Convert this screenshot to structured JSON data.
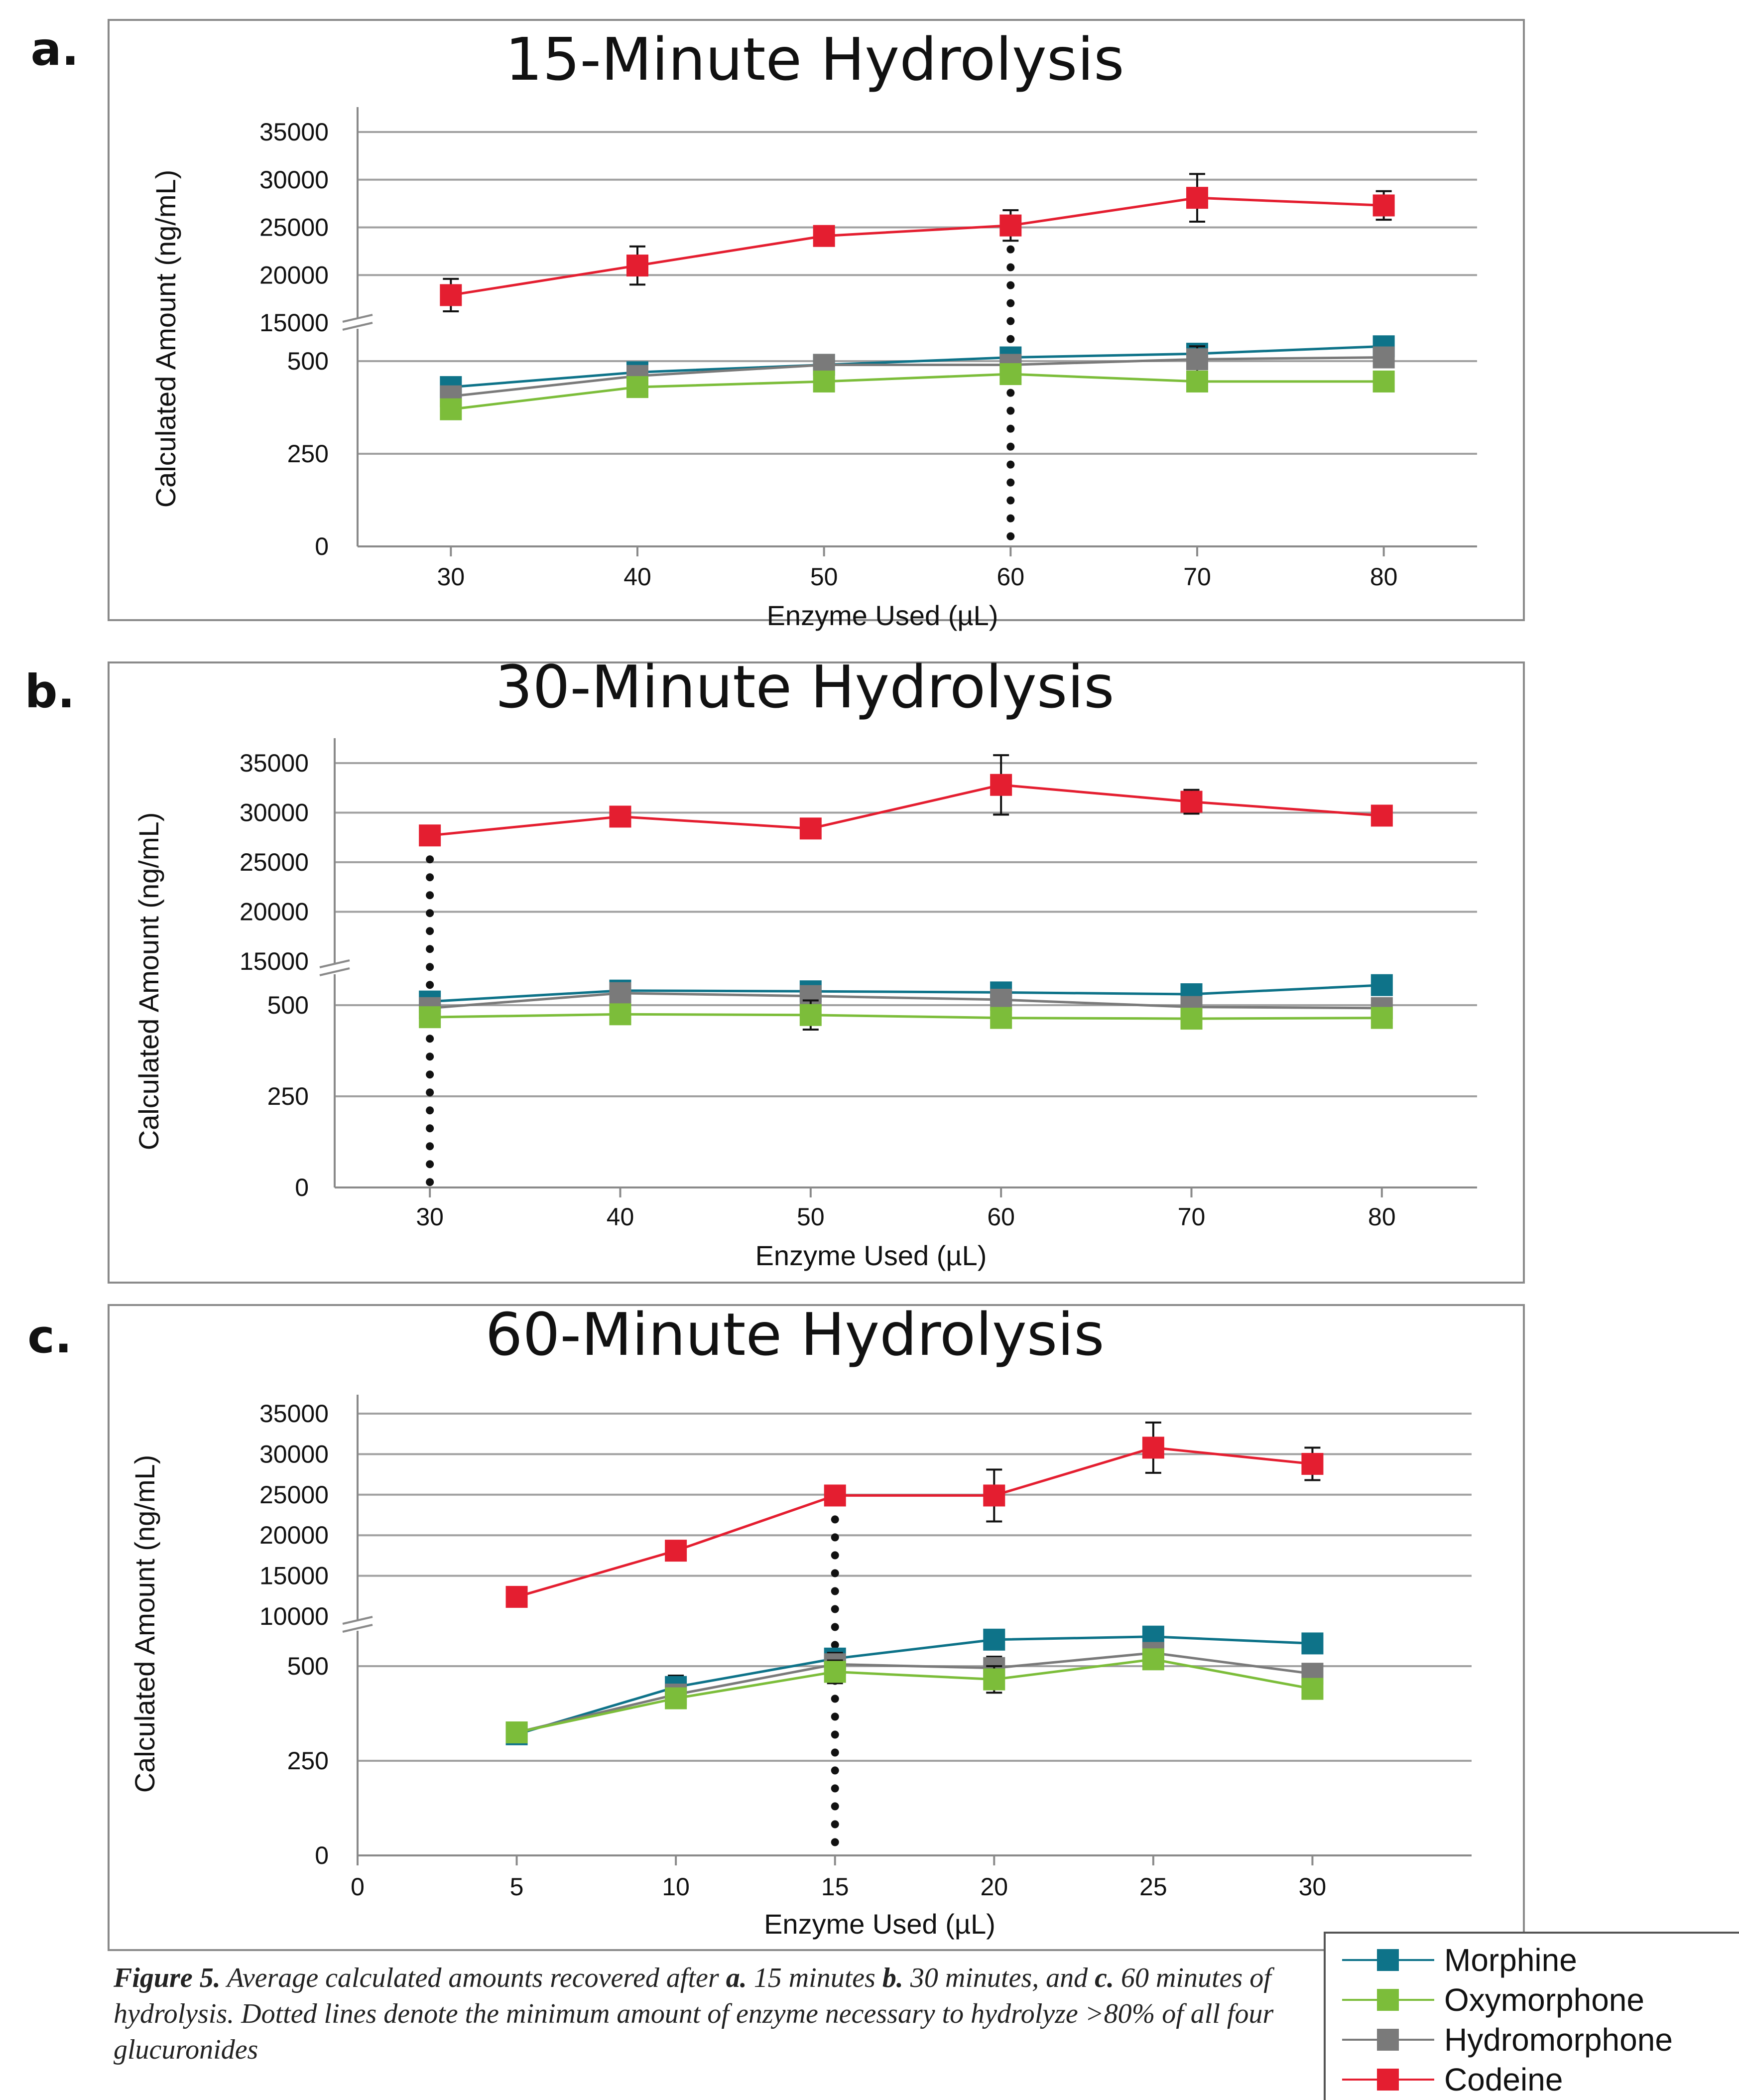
{
  "colors": {
    "Morphine": "#0e7389",
    "Oxymorphone": "#7cbd3a",
    "Hydromorphone": "#7a7a7a",
    "Codeine": "#e41e30",
    "frame": "#8a8a8a",
    "grid": "#a0a0a0"
  },
  "legend": {
    "items": [
      "Morphine",
      "Oxymorphone",
      "Hydromorphone",
      "Codeine"
    ]
  },
  "caption": {
    "figure_label": "Figure 5.",
    "segments": [
      {
        "t": "Average calculated amounts recovered after ",
        "b": false
      },
      {
        "t": "a.",
        "b": true
      },
      {
        "t": " 15 minutes ",
        "b": false
      },
      {
        "t": "b.",
        "b": true
      },
      {
        "t": " 30 minutes, and ",
        "b": false
      },
      {
        "t": "c.",
        "b": true
      },
      {
        "t": " 60 minutes of hydrolysis. Dotted lines denote the minimum amount of enzyme necessary to hydrolyze >80% of all four glucuronides",
        "b": false
      }
    ]
  },
  "chart_data": [
    {
      "panel": "a.",
      "type": "line",
      "title": "15-Minute Hydrolysis",
      "xlabel": "Enzyme Used (µL)",
      "ylabel": "Calculated Amount (ng/mL)",
      "x_ticks": [
        "30",
        "40",
        "50",
        "60",
        "70",
        "80"
      ],
      "x": [
        30,
        40,
        50,
        60,
        70,
        80
      ],
      "y_axis": "broken",
      "y_ticks_lower": [
        "0",
        "250",
        "500"
      ],
      "y_ticks_upper": [
        "15000",
        "20000",
        "25000",
        "30000",
        "35000"
      ],
      "dotted_line_x": 60,
      "grid": "horizontal",
      "series": [
        {
          "name": "Morphine",
          "values": [
            430,
            470,
            490,
            510,
            520,
            540
          ],
          "err": [
            15,
            15,
            15,
            20,
            20,
            15
          ]
        },
        {
          "name": "Oxymorphone",
          "values": [
            370,
            430,
            445,
            465,
            445,
            445
          ],
          "err": [
            15,
            20,
            20,
            15,
            15,
            10
          ]
        },
        {
          "name": "Hydromorphone",
          "values": [
            405,
            460,
            490,
            490,
            505,
            510
          ],
          "err": [
            25,
            15,
            20,
            20,
            35,
            20
          ]
        },
        {
          "name": "Codeine",
          "values": [
            17900,
            21000,
            24100,
            25200,
            28100,
            27300
          ],
          "err": [
            1700,
            2000,
            900,
            1600,
            2500,
            1500
          ]
        }
      ]
    },
    {
      "panel": "b.",
      "type": "line",
      "title": "30-Minute Hydrolysis",
      "xlabel": "Enzyme Used (µL)",
      "ylabel": "Calculated Amount (ng/mL)",
      "x_ticks": [
        "30",
        "40",
        "50",
        "60",
        "70",
        "80"
      ],
      "x": [
        30,
        40,
        50,
        60,
        70,
        80
      ],
      "y_axis": "broken",
      "y_ticks_lower": [
        "0",
        "250",
        "500"
      ],
      "y_ticks_upper": [
        "15000",
        "20000",
        "25000",
        "30000",
        "35000"
      ],
      "dotted_line_x": 30,
      "grid": "horizontal",
      "series": [
        {
          "name": "Morphine",
          "values": [
            510,
            540,
            538,
            535,
            530,
            555
          ],
          "err": [
            15,
            15,
            10,
            10,
            10,
            10
          ]
        },
        {
          "name": "Oxymorphone",
          "values": [
            467,
            475,
            473,
            465,
            463,
            465
          ],
          "err": [
            15,
            20,
            40,
            20,
            15,
            15
          ]
        },
        {
          "name": "Hydromorphone",
          "values": [
            492,
            533,
            525,
            515,
            495,
            492
          ],
          "err": [
            25,
            20,
            20,
            20,
            25,
            20
          ]
        },
        {
          "name": "Codeine",
          "values": [
            27700,
            29600,
            28400,
            32800,
            31100,
            29700
          ],
          "err": [
            600,
            500,
            900,
            3000,
            1200,
            500
          ]
        }
      ]
    },
    {
      "panel": "c.",
      "type": "line",
      "title": "60-Minute Hydrolysis",
      "xlabel": "Enzyme Used (µL)",
      "ylabel": "Calculated Amount (ng/mL)",
      "x_ticks": [
        "0",
        "5",
        "10",
        "15",
        "20",
        "25",
        "30"
      ],
      "x": [
        5,
        10,
        15,
        20,
        25,
        30
      ],
      "y_axis": "broken",
      "y_ticks_lower": [
        "0",
        "250",
        "500"
      ],
      "y_ticks_upper": [
        "10000",
        "15000",
        "20000",
        "25000",
        "30000",
        "35000"
      ],
      "dotted_line_x": 15,
      "grid": "horizontal",
      "series": [
        {
          "name": "Morphine",
          "values": [
            320,
            445,
            520,
            570,
            578,
            560
          ],
          "err": [
            15,
            30,
            20,
            15,
            15,
            15
          ]
        },
        {
          "name": "Oxymorphone",
          "values": [
            325,
            415,
            485,
            465,
            518,
            440
          ],
          "err": [
            15,
            20,
            30,
            35,
            15,
            20
          ]
        },
        {
          "name": "Hydromorphone",
          "values": [
            325,
            425,
            505,
            495,
            535,
            480
          ],
          "err": [
            15,
            20,
            30,
            30,
            20,
            25
          ]
        },
        {
          "name": "Codeine",
          "values": [
            12400,
            18100,
            24900,
            24900,
            30800,
            28800
          ],
          "err": [
            900,
            900,
            700,
            3200,
            3100,
            2000
          ]
        }
      ]
    }
  ]
}
